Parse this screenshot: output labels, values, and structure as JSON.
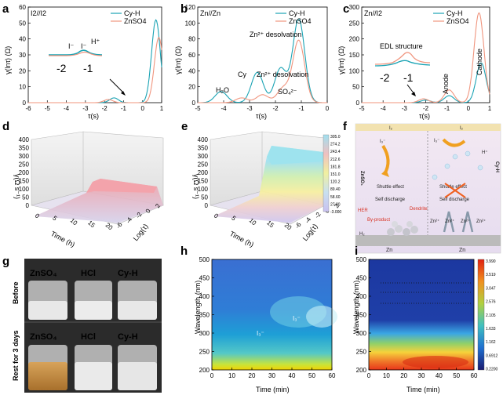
{
  "chart_data": [
    {
      "panel": "a",
      "type": "line",
      "title": "I2//I2",
      "xlabel": "τ(s)",
      "ylabel": "γ(lnτ) (Ω)",
      "xlim": [
        -6,
        1
      ],
      "ylim": [
        0,
        60
      ],
      "xticks": [
        -6,
        -5,
        -4,
        -3,
        -2,
        -1,
        0,
        1
      ],
      "yticks": [
        0,
        10,
        20,
        30,
        40,
        50,
        60
      ],
      "series": [
        {
          "name": "Cy-H",
          "color": "#1aa3b4",
          "peaks": [
            [
              -1.5,
              3
            ],
            [
              0.7,
              52
            ]
          ]
        },
        {
          "name": "ZnSO4",
          "color": "#f0957e",
          "peaks": [
            [
              -1.8,
              2
            ],
            [
              0.85,
              41
            ]
          ]
        }
      ],
      "annotations": [
        "I⁻",
        "I⁻",
        "H⁺"
      ],
      "inset_ticks": [
        "-2",
        "-1"
      ]
    },
    {
      "panel": "b",
      "type": "line",
      "title": "Zn//Zn",
      "xlabel": "τ(s)",
      "ylabel": "γ(lnτ) (Ω)",
      "xlim": [
        -5,
        0
      ],
      "ylim": [
        0,
        120
      ],
      "xticks": [
        -5,
        -4,
        -3,
        -2,
        -1,
        0
      ],
      "yticks": [
        0,
        20,
        40,
        60,
        80,
        100,
        120
      ],
      "series": [
        {
          "name": "Cy-H",
          "color": "#1aa3b4",
          "peaks": [
            [
              -4.1,
              14
            ],
            [
              -2.7,
              38
            ],
            [
              -1.8,
              43
            ],
            [
              -1.1,
              105
            ]
          ]
        },
        {
          "name": "ZnSO4",
          "color": "#f0957e",
          "peaks": [
            [
              -3.3,
              6
            ],
            [
              -2.5,
              10
            ],
            [
              -1.7,
              18
            ],
            [
              -1.1,
              78
            ]
          ]
        }
      ],
      "annotations": [
        "Zn²⁺ desolvation",
        "Zn²⁺ desolvation",
        "Cy",
        "H₂O",
        "SO₄²⁻"
      ]
    },
    {
      "panel": "c",
      "type": "line",
      "title": "Zn//I2",
      "xlabel": "τ(s)",
      "ylabel": "γ(lnτ) (Ω)",
      "xlim": [
        -5,
        1
      ],
      "ylim": [
        0,
        300
      ],
      "xticks": [
        -5,
        -4,
        -3,
        -2,
        -1,
        0,
        1
      ],
      "yticks": [
        0,
        50,
        100,
        150,
        200,
        250,
        300
      ],
      "series": [
        {
          "name": "Cy-H",
          "color": "#1aa3b4",
          "peaks": [
            [
              -2.0,
              8
            ],
            [
              -0.9,
              22
            ],
            [
              0.6,
              125
            ]
          ]
        },
        {
          "name": "ZnSO4",
          "color": "#f0957e",
          "peaks": [
            [
              -2.1,
              12
            ],
            [
              -0.9,
              40
            ],
            [
              0.5,
              282
            ]
          ]
        }
      ],
      "annotations": [
        "EDL structure",
        "Anode",
        "Cathode"
      ],
      "inset_ticks": [
        "-2",
        "-1"
      ]
    },
    {
      "panel": "d",
      "type": "surface3d",
      "zlabel": "γ(Ω s⁻¹)",
      "xlabel": "Time (h)",
      "ylabel": "Log(τ)",
      "zticks": [
        0,
        50,
        100,
        150,
        200,
        250,
        300,
        350,
        400
      ],
      "time_ticks": [
        0,
        5,
        10,
        15,
        20
      ],
      "tau_ticks": [
        -6,
        -4,
        -2,
        0,
        2
      ]
    },
    {
      "panel": "e",
      "type": "surface3d",
      "zlabel": "γ(Ω s⁻¹)",
      "xlabel": "Time (h)",
      "ylabel": "Log(τ)",
      "zticks": [
        0,
        50,
        100,
        150,
        200,
        250,
        300,
        350,
        400
      ],
      "time_ticks": [
        0,
        5,
        10,
        15,
        20
      ],
      "tau_ticks": [
        -6,
        -4,
        -2,
        0,
        2
      ],
      "colorbar": [
        "305.0",
        "274.2",
        "243.4",
        "212.6",
        "181.8",
        "151.0",
        "120.2",
        "89.40",
        "58.60",
        "27.80",
        "-3.000"
      ]
    },
    {
      "panel": "f",
      "type": "schematic",
      "labels": [
        "I₂",
        "I₂",
        "I₃⁻",
        "I₃⁻",
        "H⁺",
        "ZnSO₄",
        "Cy-H",
        "Shuttle effect",
        "Self discharge",
        "Shuttle effect",
        "Self discharge",
        "HER",
        "Dendrite",
        "By-product",
        "H₂",
        "Zn²⁺",
        "Zn²⁺",
        "Zn²⁺",
        "Zn²⁺",
        "Zn",
        "Zn"
      ]
    },
    {
      "panel": "g",
      "type": "photo",
      "columns": [
        "ZnSO₄",
        "HCl",
        "Cy-H"
      ],
      "rows": [
        "Before",
        "Rest for 3 days"
      ]
    },
    {
      "panel": "h",
      "type": "heatmap",
      "xlabel": "Time (min)",
      "ylabel": "Wavelength (nm)",
      "xlim": [
        0,
        60
      ],
      "ylim": [
        200,
        500
      ],
      "xticks": [
        0,
        10,
        20,
        30,
        40,
        50,
        60
      ],
      "yticks": [
        200,
        250,
        300,
        350,
        400,
        450,
        500
      ],
      "annotations": [
        "I₃⁻",
        "I₃⁻"
      ]
    },
    {
      "panel": "i",
      "type": "heatmap",
      "xlabel": "Time (min)",
      "ylabel": "Wavelength (nm)",
      "xlim": [
        0,
        60
      ],
      "ylim": [
        200,
        500
      ],
      "xticks": [
        0,
        10,
        20,
        30,
        40,
        50,
        60
      ],
      "yticks": [
        200,
        250,
        300,
        350,
        400,
        450,
        500
      ],
      "colorbar": [
        "3.990",
        "3.519",
        "3.047",
        "2.576",
        "2.105",
        "1.633",
        "1.162",
        "0.6912",
        "0.2200"
      ]
    }
  ]
}
